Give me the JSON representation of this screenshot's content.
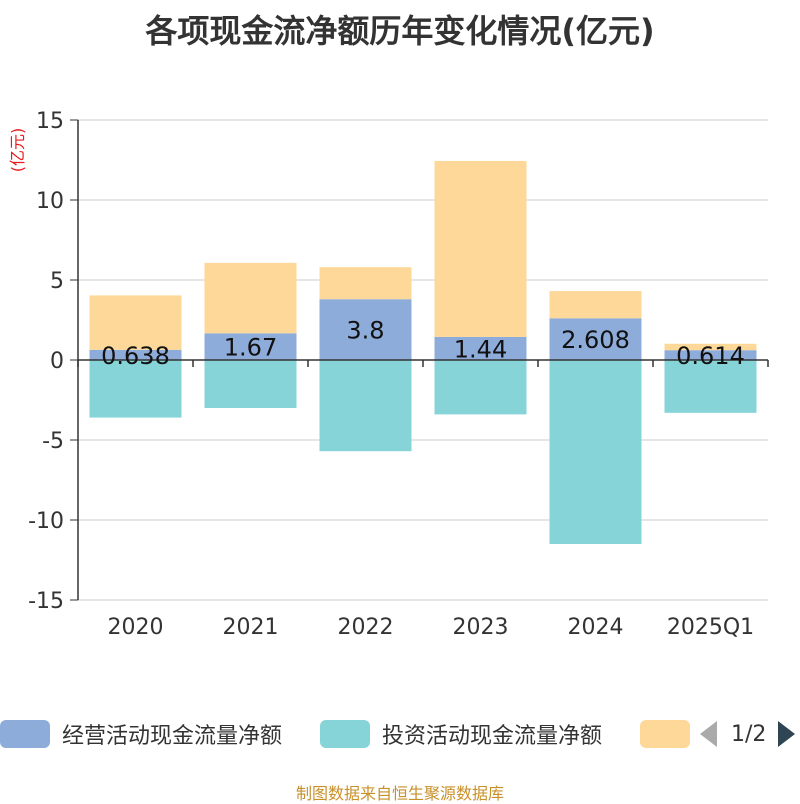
{
  "chart_data": {
    "type": "bar",
    "stacked": true,
    "title": "各项现金流净额历年变化情况(亿元)",
    "ylabel": "(亿元)",
    "ylim": [
      -15,
      15
    ],
    "yticks": [
      15,
      10,
      5,
      0,
      -5,
      -10,
      -15
    ],
    "categories": [
      "2020",
      "2021",
      "2022",
      "2023",
      "2024",
      "2025Q1"
    ],
    "series": [
      {
        "name": "经营活动现金流量净额",
        "color": "#8eacda",
        "values": [
          0.638,
          1.67,
          3.8,
          1.44,
          2.608,
          0.614
        ],
        "labels": [
          "0.638",
          "1.67",
          "3.8",
          "1.44",
          "2.608",
          "0.614"
        ]
      },
      {
        "name": "投资活动现金流量净额",
        "color": "#86d4d8",
        "values": [
          -3.6,
          -3.0,
          -5.7,
          -3.4,
          -11.5,
          -3.3
        ]
      },
      {
        "name": "",
        "color": "#fdd898",
        "values": [
          3.4,
          4.4,
          2.0,
          11.0,
          1.7,
          0.4
        ]
      }
    ],
    "grid": true,
    "legend_position": "bottom"
  },
  "legend": {
    "page": "1/2"
  },
  "source": "制图数据来自恒生聚源数据库"
}
